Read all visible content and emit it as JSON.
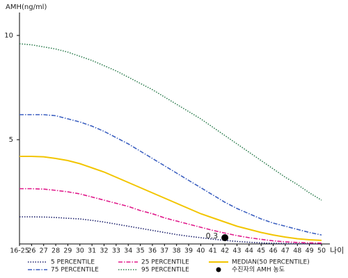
{
  "chart_data": {
    "type": "line",
    "ylabel": "AMH(ng/ml)",
    "xlabel": "나이",
    "categories": [
      "16-25",
      "26",
      "27",
      "28",
      "29",
      "30",
      "31",
      "32",
      "33",
      "34",
      "35",
      "36",
      "37",
      "38",
      "39",
      "40",
      "41",
      "42",
      "43",
      "44",
      "45",
      "46",
      "47",
      "48",
      "49",
      "50"
    ],
    "ylim": [
      0,
      11.1
    ],
    "yticks": [
      5,
      10
    ],
    "series": [
      {
        "name": "5 PERCENTILE",
        "color": "#1b1f6b",
        "style": "dotted",
        "values": [
          1.3,
          1.3,
          1.29,
          1.27,
          1.23,
          1.2,
          1.13,
          1.05,
          0.95,
          0.85,
          0.75,
          0.65,
          0.55,
          0.45,
          0.37,
          0.3,
          0.23,
          0.17,
          0.12,
          0.08,
          0.05,
          0.03,
          0.02,
          0.01,
          0.01,
          0.0
        ]
      },
      {
        "name": "25 PERCENTILE",
        "color": "#e0198a",
        "style": "dashdot",
        "values": [
          2.65,
          2.65,
          2.63,
          2.57,
          2.5,
          2.4,
          2.25,
          2.1,
          1.95,
          1.8,
          1.6,
          1.45,
          1.25,
          1.1,
          0.95,
          0.8,
          0.65,
          0.52,
          0.4,
          0.3,
          0.22,
          0.15,
          0.1,
          0.07,
          0.05,
          0.04
        ]
      },
      {
        "name": "MEDIAN(50 PERCENTILE)",
        "color": "#f2c500",
        "style": "solid",
        "values": [
          4.2,
          4.2,
          4.18,
          4.1,
          4.0,
          3.85,
          3.65,
          3.45,
          3.2,
          2.95,
          2.7,
          2.45,
          2.2,
          1.95,
          1.7,
          1.45,
          1.25,
          1.05,
          0.85,
          0.7,
          0.55,
          0.43,
          0.33,
          0.25,
          0.2,
          0.17
        ]
      },
      {
        "name": "75 PERCENTILE",
        "color": "#3b5fc0",
        "style": "dashdot",
        "values": [
          6.2,
          6.2,
          6.2,
          6.15,
          6.0,
          5.85,
          5.65,
          5.4,
          5.1,
          4.8,
          4.45,
          4.1,
          3.75,
          3.4,
          3.05,
          2.7,
          2.35,
          2.0,
          1.7,
          1.45,
          1.2,
          1.0,
          0.85,
          0.7,
          0.55,
          0.43
        ]
      },
      {
        "name": "95 PERCENTILE",
        "color": "#2e7d4f",
        "style": "dotted",
        "values": [
          9.6,
          9.55,
          9.45,
          9.35,
          9.2,
          9.0,
          8.8,
          8.55,
          8.3,
          8.0,
          7.7,
          7.4,
          7.05,
          6.7,
          6.35,
          6.0,
          5.6,
          5.2,
          4.8,
          4.4,
          4.0,
          3.6,
          3.2,
          2.85,
          2.45,
          2.1
        ]
      }
    ],
    "marker": {
      "name": "수진자의 AMH 농도",
      "category": "42",
      "value": 0.3,
      "color": "#000000"
    }
  }
}
